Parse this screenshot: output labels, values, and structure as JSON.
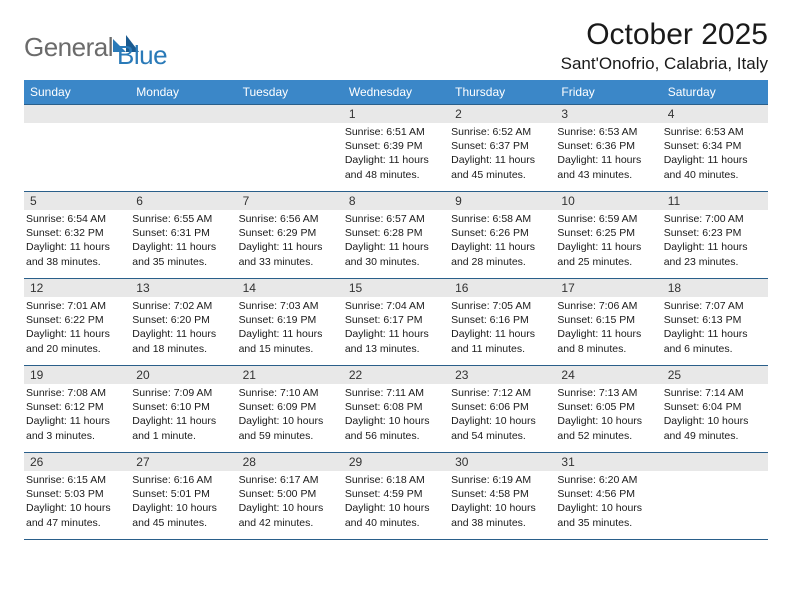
{
  "logo": {
    "gray_text": "General",
    "blue_text": "Blue"
  },
  "title": "October 2025",
  "location": "Sant'Onofrio, Calabria, Italy",
  "colors": {
    "header_bg": "#3b87c8",
    "header_fg": "#ffffff",
    "row_border": "#2a5f8a",
    "daynum_bg": "#e8e8e8",
    "logo_gray": "#6b6b6b",
    "logo_blue": "#2a7ab8"
  },
  "weekdays": [
    "Sunday",
    "Monday",
    "Tuesday",
    "Wednesday",
    "Thursday",
    "Friday",
    "Saturday"
  ],
  "weeks": [
    [
      {
        "day": null
      },
      {
        "day": null
      },
      {
        "day": null
      },
      {
        "day": 1,
        "sunrise": "6:51 AM",
        "sunset": "6:39 PM",
        "daylight": "11 hours and 48 minutes."
      },
      {
        "day": 2,
        "sunrise": "6:52 AM",
        "sunset": "6:37 PM",
        "daylight": "11 hours and 45 minutes."
      },
      {
        "day": 3,
        "sunrise": "6:53 AM",
        "sunset": "6:36 PM",
        "daylight": "11 hours and 43 minutes."
      },
      {
        "day": 4,
        "sunrise": "6:53 AM",
        "sunset": "6:34 PM",
        "daylight": "11 hours and 40 minutes."
      }
    ],
    [
      {
        "day": 5,
        "sunrise": "6:54 AM",
        "sunset": "6:32 PM",
        "daylight": "11 hours and 38 minutes."
      },
      {
        "day": 6,
        "sunrise": "6:55 AM",
        "sunset": "6:31 PM",
        "daylight": "11 hours and 35 minutes."
      },
      {
        "day": 7,
        "sunrise": "6:56 AM",
        "sunset": "6:29 PM",
        "daylight": "11 hours and 33 minutes."
      },
      {
        "day": 8,
        "sunrise": "6:57 AM",
        "sunset": "6:28 PM",
        "daylight": "11 hours and 30 minutes."
      },
      {
        "day": 9,
        "sunrise": "6:58 AM",
        "sunset": "6:26 PM",
        "daylight": "11 hours and 28 minutes."
      },
      {
        "day": 10,
        "sunrise": "6:59 AM",
        "sunset": "6:25 PM",
        "daylight": "11 hours and 25 minutes."
      },
      {
        "day": 11,
        "sunrise": "7:00 AM",
        "sunset": "6:23 PM",
        "daylight": "11 hours and 23 minutes."
      }
    ],
    [
      {
        "day": 12,
        "sunrise": "7:01 AM",
        "sunset": "6:22 PM",
        "daylight": "11 hours and 20 minutes."
      },
      {
        "day": 13,
        "sunrise": "7:02 AM",
        "sunset": "6:20 PM",
        "daylight": "11 hours and 18 minutes."
      },
      {
        "day": 14,
        "sunrise": "7:03 AM",
        "sunset": "6:19 PM",
        "daylight": "11 hours and 15 minutes."
      },
      {
        "day": 15,
        "sunrise": "7:04 AM",
        "sunset": "6:17 PM",
        "daylight": "11 hours and 13 minutes."
      },
      {
        "day": 16,
        "sunrise": "7:05 AM",
        "sunset": "6:16 PM",
        "daylight": "11 hours and 11 minutes."
      },
      {
        "day": 17,
        "sunrise": "7:06 AM",
        "sunset": "6:15 PM",
        "daylight": "11 hours and 8 minutes."
      },
      {
        "day": 18,
        "sunrise": "7:07 AM",
        "sunset": "6:13 PM",
        "daylight": "11 hours and 6 minutes."
      }
    ],
    [
      {
        "day": 19,
        "sunrise": "7:08 AM",
        "sunset": "6:12 PM",
        "daylight": "11 hours and 3 minutes."
      },
      {
        "day": 20,
        "sunrise": "7:09 AM",
        "sunset": "6:10 PM",
        "daylight": "11 hours and 1 minute."
      },
      {
        "day": 21,
        "sunrise": "7:10 AM",
        "sunset": "6:09 PM",
        "daylight": "10 hours and 59 minutes."
      },
      {
        "day": 22,
        "sunrise": "7:11 AM",
        "sunset": "6:08 PM",
        "daylight": "10 hours and 56 minutes."
      },
      {
        "day": 23,
        "sunrise": "7:12 AM",
        "sunset": "6:06 PM",
        "daylight": "10 hours and 54 minutes."
      },
      {
        "day": 24,
        "sunrise": "7:13 AM",
        "sunset": "6:05 PM",
        "daylight": "10 hours and 52 minutes."
      },
      {
        "day": 25,
        "sunrise": "7:14 AM",
        "sunset": "6:04 PM",
        "daylight": "10 hours and 49 minutes."
      }
    ],
    [
      {
        "day": 26,
        "sunrise": "6:15 AM",
        "sunset": "5:03 PM",
        "daylight": "10 hours and 47 minutes."
      },
      {
        "day": 27,
        "sunrise": "6:16 AM",
        "sunset": "5:01 PM",
        "daylight": "10 hours and 45 minutes."
      },
      {
        "day": 28,
        "sunrise": "6:17 AM",
        "sunset": "5:00 PM",
        "daylight": "10 hours and 42 minutes."
      },
      {
        "day": 29,
        "sunrise": "6:18 AM",
        "sunset": "4:59 PM",
        "daylight": "10 hours and 40 minutes."
      },
      {
        "day": 30,
        "sunrise": "6:19 AM",
        "sunset": "4:58 PM",
        "daylight": "10 hours and 38 minutes."
      },
      {
        "day": 31,
        "sunrise": "6:20 AM",
        "sunset": "4:56 PM",
        "daylight": "10 hours and 35 minutes."
      },
      {
        "day": null
      }
    ]
  ],
  "labels": {
    "sunrise_prefix": "Sunrise: ",
    "sunset_prefix": "Sunset: ",
    "daylight_prefix": "Daylight: "
  }
}
